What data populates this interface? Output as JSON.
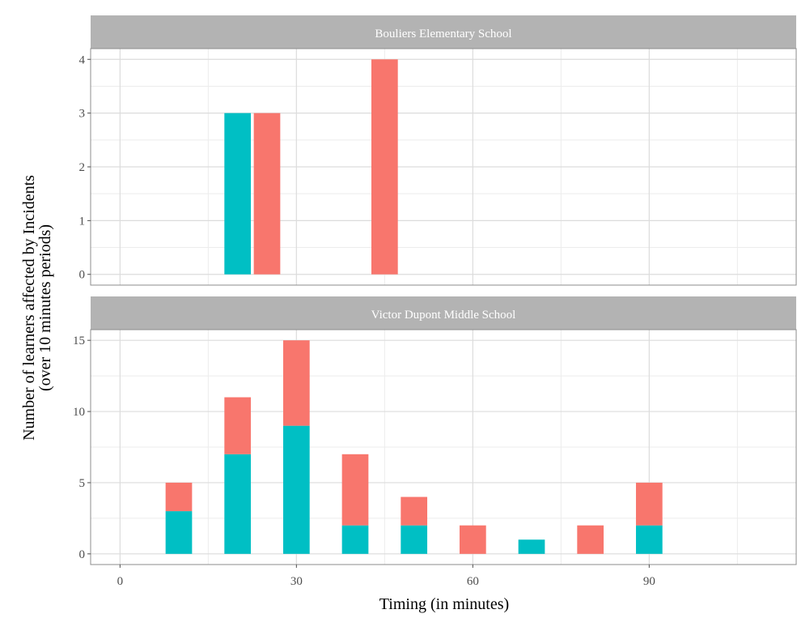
{
  "chart_data": {
    "type": "bar",
    "layout": "facets-stacked-vertical",
    "xlabel": "Timing (in minutes)",
    "ylabel": [
      "Number of learners affected by Incidents",
      "(over 10 minutes periods)"
    ],
    "xlim": [
      -5,
      115
    ],
    "xticks": [
      0,
      30,
      60,
      90
    ],
    "grid": true,
    "legend": "none",
    "bar_width": 4.5,
    "colors": {
      "teal": "#00bfc4",
      "red": "#f8766d"
    },
    "facets": [
      {
        "title": "Bouliers Elementary School",
        "ylim": [
          -0.2,
          4.2
        ],
        "yticks": [
          0,
          1,
          2,
          3,
          4
        ],
        "bars": [
          {
            "x": 20,
            "teal": 3,
            "red": 0
          },
          {
            "x": 25,
            "teal": 0,
            "red": 3
          },
          {
            "x": 45,
            "teal": 0,
            "red": 4
          }
        ]
      },
      {
        "title": "Victor Dupont Middle School",
        "ylim": [
          -0.75,
          15.75
        ],
        "yticks": [
          0,
          5,
          10,
          15
        ],
        "bars": [
          {
            "x": 10,
            "teal": 3,
            "red": 2
          },
          {
            "x": 20,
            "teal": 7,
            "red": 4
          },
          {
            "x": 30,
            "teal": 9,
            "red": 6
          },
          {
            "x": 40,
            "teal": 2,
            "red": 5
          },
          {
            "x": 50,
            "teal": 2,
            "red": 2
          },
          {
            "x": 60,
            "teal": 0,
            "red": 2
          },
          {
            "x": 70,
            "teal": 1,
            "red": 0
          },
          {
            "x": 80,
            "teal": 0,
            "red": 2
          },
          {
            "x": 90,
            "teal": 2,
            "red": 3
          }
        ]
      }
    ]
  }
}
